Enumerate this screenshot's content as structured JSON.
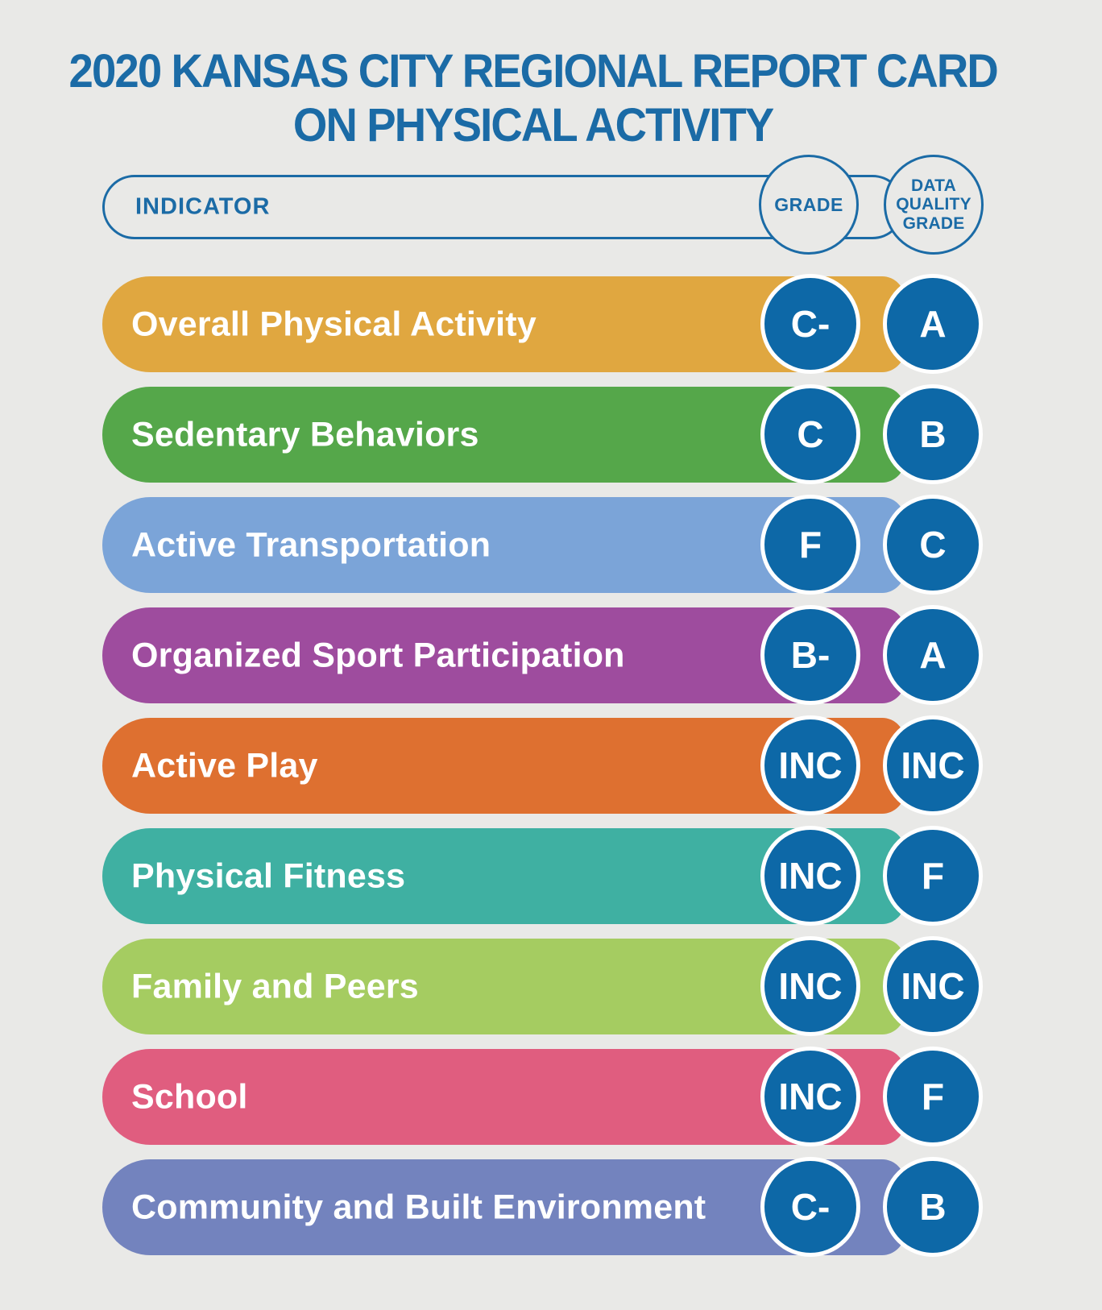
{
  "title": {
    "line1": "2020 KANSAS CITY REGIONAL REPORT CARD",
    "line2": "ON PHYSICAL ACTIVITY"
  },
  "header": {
    "indicator": "INDICATOR",
    "grade": "GRADE",
    "data_quality_lines": [
      "DATA",
      "QUALITY",
      "GRADE"
    ]
  },
  "colors": {
    "background": "#E9E9E7",
    "header_blue": "#1B6BA6",
    "circle_blue": "#0D68A7",
    "bar_text": "#FFFFFF"
  },
  "rows": [
    {
      "label": "Overall Physical Activity",
      "color": "#E0A740",
      "grade": "C-",
      "data_quality_grade": "A"
    },
    {
      "label": "Sedentary Behaviors",
      "color": "#55A74A",
      "grade": "C",
      "data_quality_grade": "B"
    },
    {
      "label": "Active Transportation",
      "color": "#7BA4D8",
      "grade": "F",
      "data_quality_grade": "C"
    },
    {
      "label": "Organized Sport Participation",
      "color": "#9E4C9E",
      "grade": "B-",
      "data_quality_grade": "A"
    },
    {
      "label": "Active Play",
      "color": "#DE7030",
      "grade": "INC",
      "data_quality_grade": "INC"
    },
    {
      "label": "Physical Fitness",
      "color": "#3FB0A2",
      "grade": "INC",
      "data_quality_grade": "F"
    },
    {
      "label": "Family and Peers",
      "color": "#A5CC61",
      "grade": "INC",
      "data_quality_grade": "INC"
    },
    {
      "label": "School",
      "color": "#E05D7F",
      "grade": "INC",
      "data_quality_grade": "F"
    },
    {
      "label": "Community and Built Environment",
      "color": "#7383BE",
      "grade": "C-",
      "data_quality_grade": "B"
    }
  ],
  "chart_data": {
    "type": "table",
    "title": "2020 Kansas City Regional Report Card on Physical Activity",
    "columns": [
      "INDICATOR",
      "GRADE",
      "DATA QUALITY GRADE"
    ],
    "rows": [
      [
        "Overall Physical Activity",
        "C-",
        "A"
      ],
      [
        "Sedentary Behaviors",
        "C",
        "B"
      ],
      [
        "Active Transportation",
        "F",
        "C"
      ],
      [
        "Organized Sport Participation",
        "B-",
        "A"
      ],
      [
        "Active Play",
        "INC",
        "INC"
      ],
      [
        "Physical Fitness",
        "INC",
        "F"
      ],
      [
        "Family and Peers",
        "INC",
        "INC"
      ],
      [
        "School",
        "INC",
        "F"
      ],
      [
        "Community and Built Environment",
        "C-",
        "B"
      ]
    ]
  }
}
